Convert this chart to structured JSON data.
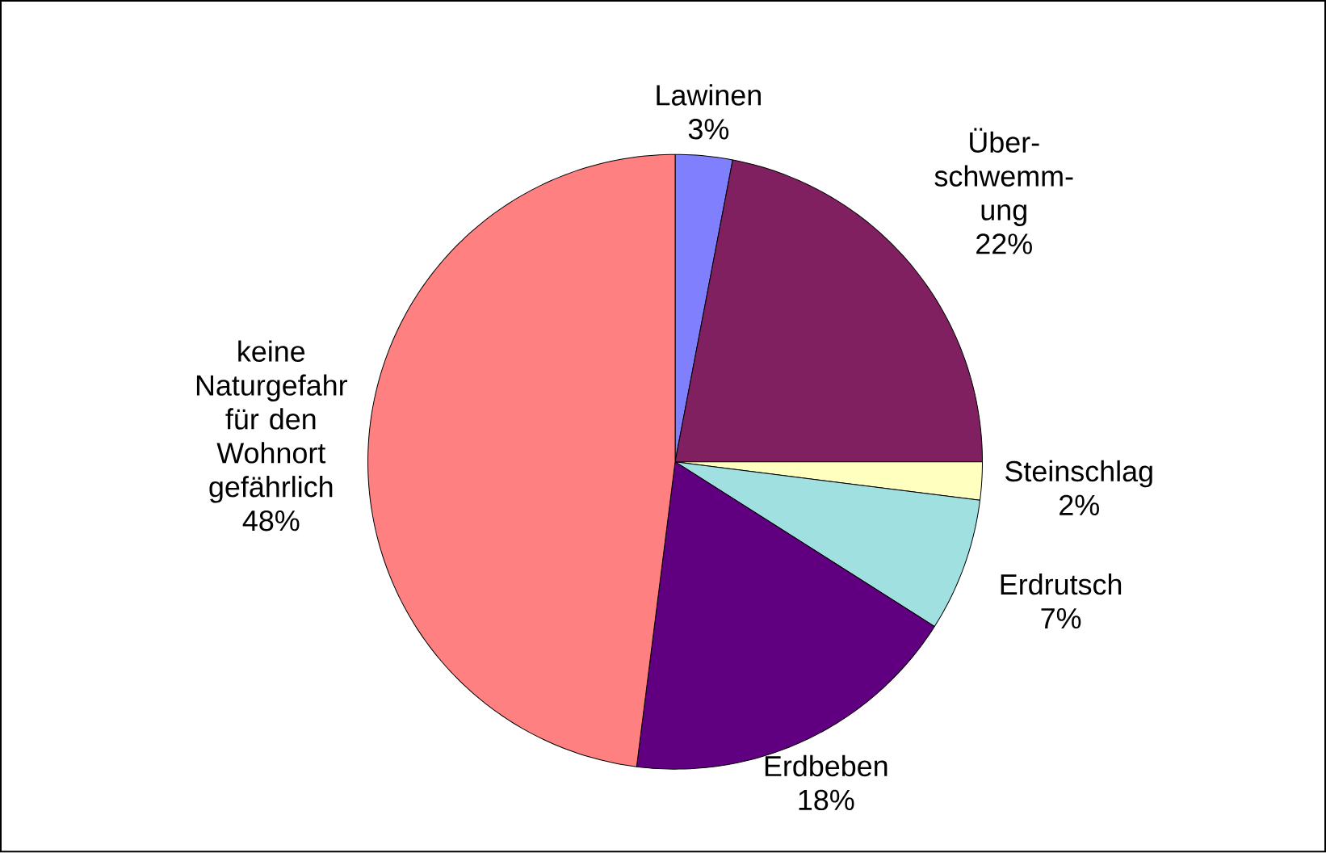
{
  "chart_data": {
    "type": "pie",
    "categories": [
      "Lawinen",
      "Über-schwemm-ung",
      "Steinschlag",
      "Erdrutsch",
      "Erdbeben",
      "keine Naturgefahr für den Wohnort gefährlich"
    ],
    "values": [
      3,
      22,
      2,
      7,
      18,
      48
    ],
    "colors": [
      "#8080ff",
      "#802060",
      "#ffffc0",
      "#a0e0e0",
      "#600080",
      "#ff8080"
    ],
    "value_labels": [
      "3%",
      "22%",
      "2%",
      "7%",
      "18%",
      "48%"
    ]
  }
}
